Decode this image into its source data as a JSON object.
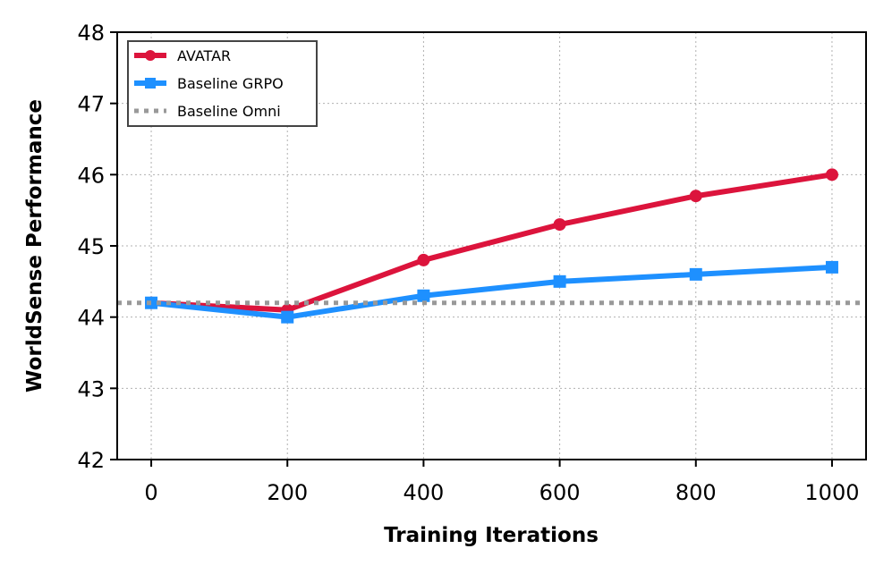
{
  "chart_data": {
    "type": "line",
    "title": "",
    "xlabel": "Training Iterations",
    "ylabel": "WorldSense Performance",
    "x": [
      0,
      200,
      400,
      600,
      800,
      1000
    ],
    "xlim": [
      -50,
      1050
    ],
    "ylim": [
      42,
      48
    ],
    "xticks": [
      0,
      200,
      400,
      600,
      800,
      1000
    ],
    "yticks": [
      42,
      43,
      44,
      45,
      46,
      47,
      48
    ],
    "grid": true,
    "legend_position": "top-left",
    "series": [
      {
        "name": "AVATAR",
        "values": [
          44.2,
          44.1,
          44.8,
          45.3,
          45.7,
          46.0
        ],
        "color": "#dc143c",
        "marker": "circle",
        "style": "solid"
      },
      {
        "name": "Baseline GRPO",
        "values": [
          44.2,
          44.0,
          44.3,
          44.5,
          44.6,
          44.7
        ],
        "color": "#1e90ff",
        "marker": "square",
        "style": "solid"
      },
      {
        "name": "Baseline Omni",
        "constant": 44.2,
        "color": "#999999",
        "marker": "none",
        "style": "dotted"
      }
    ]
  }
}
